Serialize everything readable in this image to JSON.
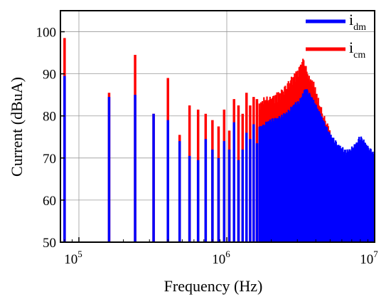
{
  "chart_data": {
    "type": "bar",
    "title": "",
    "xlabel": "Frequency (Hz)",
    "ylabel": "Current (dBuA)",
    "xscale": "log",
    "xlim": [
      75000,
      10000000
    ],
    "ylim": [
      50,
      105
    ],
    "grid": true,
    "legend_position": "top-right",
    "x_ticks": [
      {
        "base": "10",
        "exp": "5",
        "value": 100000
      },
      {
        "base": "10",
        "exp": "6",
        "value": 1000000
      },
      {
        "base": "10",
        "exp": "7",
        "value": 10000000
      }
    ],
    "y_ticks": [
      50,
      60,
      70,
      80,
      90,
      100
    ],
    "series": [
      {
        "name": "i_cm",
        "legend_main": "i",
        "legend_sub": "cm",
        "color": "#ff0000",
        "x": [
          80000,
          160000,
          240000,
          320000,
          400000,
          480000,
          560000,
          640000,
          720000,
          800000,
          880000,
          960000,
          1040000,
          1120000,
          1200000,
          1280000,
          1360000,
          1440000,
          1520000,
          1600000
        ],
        "values": [
          98.5,
          85.5,
          94.5,
          80.5,
          89,
          75.5,
          82.5,
          81.5,
          80.5,
          79,
          77.5,
          81.5,
          76.5,
          84,
          82.5,
          80.5,
          85.5,
          82.5,
          84.5,
          84
        ]
      },
      {
        "name": "i_dm",
        "legend_main": "i",
        "legend_sub": "dm",
        "color": "#0000ff",
        "x": [
          80000,
          160000,
          240000,
          320000,
          400000,
          480000,
          560000,
          640000,
          720000,
          800000,
          880000,
          960000,
          1040000,
          1120000,
          1200000,
          1280000,
          1360000,
          1440000,
          1520000,
          1600000
        ],
        "values": [
          89.5,
          84.5,
          85,
          80.5,
          79,
          74,
          70.5,
          69.5,
          74.5,
          72,
          70,
          74,
          72,
          78.5,
          69.5,
          72,
          76,
          74.5,
          78,
          73.5
        ]
      }
    ],
    "dense_region": {
      "cm_envelope": {
        "x": [
          1600000,
          1800000,
          2000000,
          2300000,
          2600000,
          3000000,
          3300000,
          3600000,
          3900000,
          4200000,
          4600000,
          5000000
        ],
        "values": [
          82,
          85,
          85,
          86,
          88.5,
          91,
          94.5,
          90,
          88,
          84,
          80,
          77
        ]
      },
      "dm_envelope": {
        "x": [
          1600000,
          1900000,
          2200000,
          2500000,
          2800000,
          3100000,
          3400000,
          3700000,
          4000000,
          4500000,
          5000000,
          5500000,
          6000000,
          6500000,
          7000000,
          7500000,
          8000000,
          8500000,
          9000000,
          9500000,
          10000000
        ],
        "values": [
          77,
          79,
          80,
          81,
          83,
          84,
          87,
          85,
          83,
          79,
          76,
          74,
          73,
          72,
          73,
          74,
          75.5,
          74.5,
          73,
          72,
          71
        ]
      }
    }
  }
}
